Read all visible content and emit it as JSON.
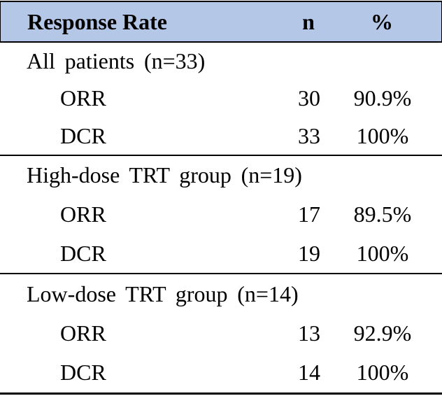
{
  "table": {
    "header": {
      "label": "Response Rate",
      "col_n": "n",
      "col_pct": "%"
    },
    "sections": [
      {
        "title": "All patients (n=33)",
        "rows": [
          {
            "label": "ORR",
            "n": "30",
            "pct": "90.9%"
          },
          {
            "label": "DCR",
            "n": "33",
            "pct": "100%"
          }
        ]
      },
      {
        "title": "High-dose TRT group (n=19)",
        "rows": [
          {
            "label": "ORR",
            "n": "17",
            "pct": "89.5%"
          },
          {
            "label": "DCR",
            "n": "19",
            "pct": "100%"
          }
        ]
      },
      {
        "title": "Low-dose TRT group (n=14)",
        "rows": [
          {
            "label": "ORR",
            "n": "13",
            "pct": "92.9%"
          },
          {
            "label": "DCR",
            "n": "14",
            "pct": "100%"
          }
        ]
      }
    ],
    "colors": {
      "header_bg": "#b5c7e7",
      "border": "#000000",
      "text": "#000000"
    }
  }
}
